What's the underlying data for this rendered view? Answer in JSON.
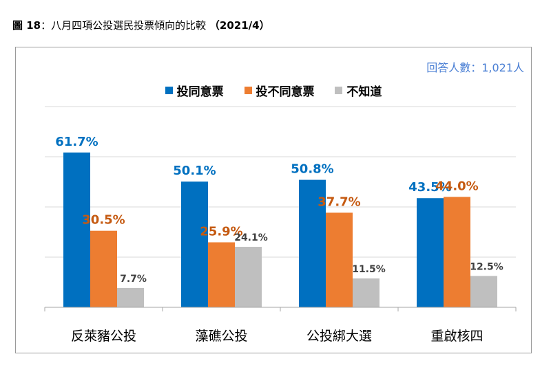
{
  "figure": {
    "prefix": "圖 18",
    "separator": "：",
    "title_text": "八月四項公投選民投票傾向的比較",
    "year": "（2021/4）"
  },
  "respondents": "回答人數：1,021人",
  "chart_data": {
    "type": "bar",
    "categories": [
      "反萊豬公投",
      "藻礁公投",
      "公投綁大選",
      "重啟核四"
    ],
    "series": [
      {
        "name": "投同意票",
        "values": [
          61.7,
          50.1,
          50.8,
          43.5
        ],
        "labels": [
          "61.7%",
          "50.1%",
          "50.8%",
          "43.5%"
        ],
        "color": "#0070c0"
      },
      {
        "name": "投不同意票",
        "values": [
          30.5,
          25.9,
          37.7,
          44.0
        ],
        "labels": [
          "30.5%",
          "25.9%",
          "37.7%",
          "44.0%"
        ],
        "color": "#ed7d31"
      },
      {
        "name": "不知道",
        "values": [
          7.7,
          24.1,
          11.5,
          12.5
        ],
        "labels": [
          "7.7%",
          "24.1%",
          "11.5%",
          "12.5%"
        ],
        "color": "#bfbfbf"
      }
    ],
    "label_colors": [
      "#0070c0",
      "#c55a11",
      "#404040"
    ],
    "ylim": [
      0,
      80
    ],
    "grid": true,
    "legend_position": "top"
  }
}
